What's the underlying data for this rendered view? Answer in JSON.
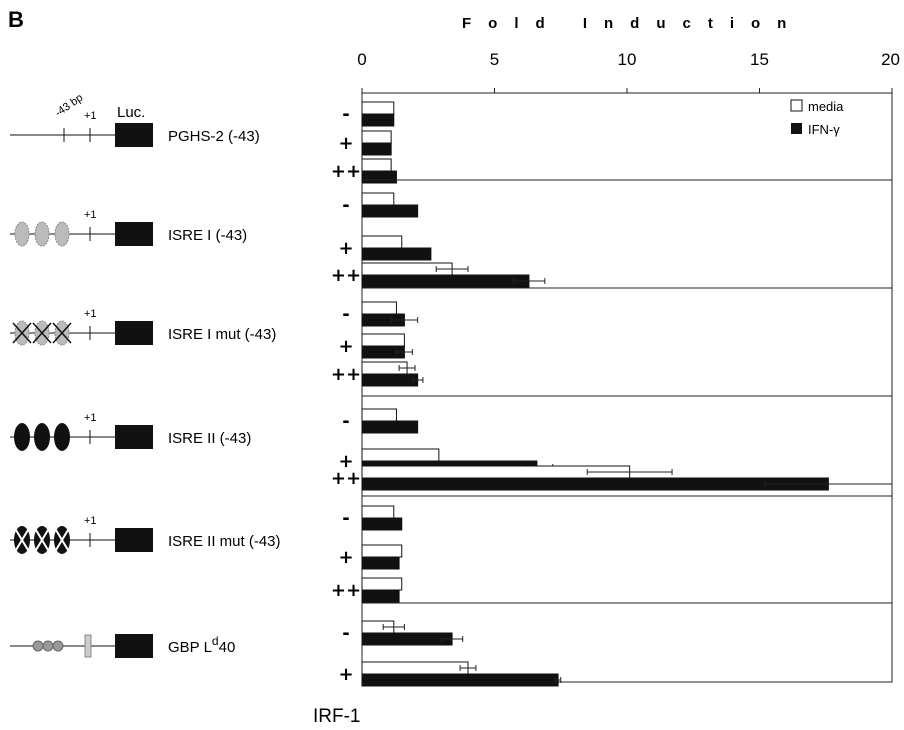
{
  "panel_letter": "B",
  "bottom_label": "IRF-1",
  "diagram_labels": {
    "bp": "-43 bp",
    "plus_one": "+1",
    "luc": "Luc."
  },
  "colors": {
    "media": "#ffffff",
    "ifn": "#111111",
    "axis": "#222222"
  },
  "chart_data": {
    "type": "bar",
    "orientation": "horizontal",
    "title": "",
    "xlabel": "Fold Induction",
    "xlim": [
      0,
      20
    ],
    "xticks": [
      0,
      5,
      10,
      15,
      20
    ],
    "legend": {
      "position": "top-right",
      "entries": [
        "media",
        "IFN-γ"
      ]
    },
    "groups": [
      {
        "construct": "PGHS-2 (-43)",
        "motif": "none",
        "rows": [
          {
            "dose": "-",
            "media": 1.2,
            "ifn": 1.2
          },
          {
            "dose": "+",
            "media": 1.1,
            "ifn": 1.1
          },
          {
            "dose": "++",
            "media": 1.1,
            "ifn": 1.3
          }
        ]
      },
      {
        "construct": "ISRE I (-43)",
        "motif": "isre1",
        "rows": [
          {
            "dose": "-",
            "media": 1.2,
            "ifn": 2.1
          },
          {
            "dose": "+",
            "media": 1.5,
            "ifn": 2.6
          },
          {
            "dose": "++",
            "media": 3.4,
            "media_err": 0.6,
            "ifn": 6.3,
            "ifn_err": 0.6
          }
        ]
      },
      {
        "construct": "ISRE I mut (-43)",
        "motif": "isre1-mut",
        "rows": [
          {
            "dose": "-",
            "media": 1.3,
            "ifn": 1.6,
            "ifn_err": 0.5
          },
          {
            "dose": "+",
            "media": 1.6,
            "ifn": 1.6,
            "ifn_err": 0.3
          },
          {
            "dose": "++",
            "media": 1.7,
            "media_err": 0.3,
            "ifn": 2.1,
            "ifn_err": 0.2
          }
        ]
      },
      {
        "construct": "ISRE II (-43)",
        "motif": "isre2",
        "rows": [
          {
            "dose": "-",
            "media": 1.3,
            "ifn": 2.1
          },
          {
            "dose": "+",
            "media": 2.9,
            "ifn": 6.6,
            "ifn_err": 0.6
          },
          {
            "dose": "++",
            "media": 10.1,
            "media_err": 1.6,
            "ifn": 17.6,
            "ifn_err": 2.4
          }
        ]
      },
      {
        "construct": "ISRE II mut (-43)",
        "motif": "isre2-mut",
        "rows": [
          {
            "dose": "-",
            "media": 1.2,
            "ifn": 1.5
          },
          {
            "dose": "+",
            "media": 1.5,
            "ifn": 1.4
          },
          {
            "dose": "++",
            "media": 1.5,
            "ifn": 1.4
          }
        ]
      },
      {
        "construct": "GBP L",
        "construct_sup": "d",
        "construct_suffix": "40",
        "motif": "gbp",
        "rows": [
          {
            "dose": "-",
            "media": 1.2,
            "media_err": 0.4,
            "ifn": 3.4,
            "ifn_err": 0.4
          },
          {
            "dose": "+",
            "media": 4.0,
            "media_err": 0.3,
            "ifn": 7.4,
            "ifn_err": 0.1
          }
        ]
      }
    ]
  }
}
